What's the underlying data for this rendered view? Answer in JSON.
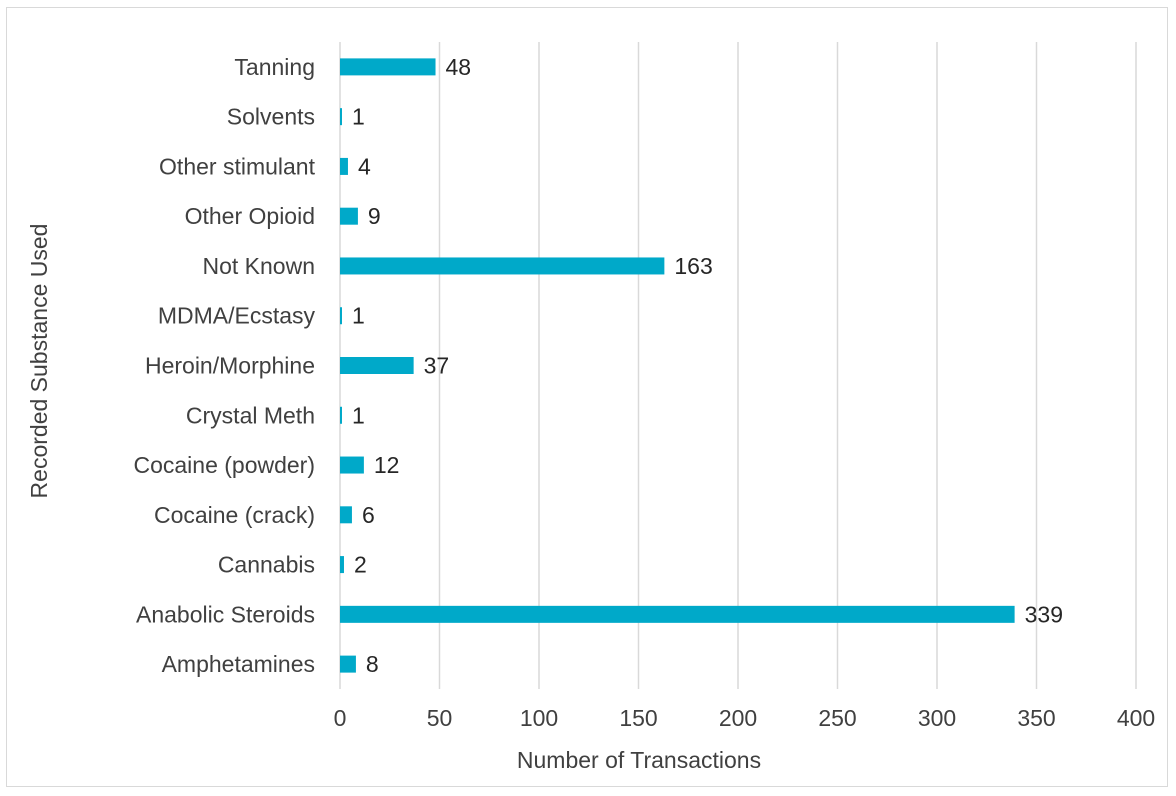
{
  "chart_data": {
    "type": "bar",
    "orientation": "horizontal",
    "categories": [
      "Tanning",
      "Solvents",
      "Other stimulant",
      "Other Opioid",
      "Not Known",
      "MDMA/Ecstasy",
      "Heroin/Morphine",
      "Crystal Meth",
      "Cocaine (powder)",
      "Cocaine (crack)",
      "Cannabis",
      "Anabolic Steroids",
      "Amphetamines"
    ],
    "values": [
      48,
      1,
      4,
      9,
      163,
      1,
      37,
      1,
      12,
      6,
      2,
      339,
      8
    ],
    "title": "",
    "xlabel": "Number of Transactions",
    "ylabel": "Recorded Substance Used",
    "xlim": [
      0,
      400
    ],
    "xticks": [
      0,
      50,
      100,
      150,
      200,
      250,
      300,
      350,
      400
    ],
    "grid": true,
    "legend": "none",
    "bar_color": "#00a9c9",
    "grid_color": "#d9d9d9"
  }
}
